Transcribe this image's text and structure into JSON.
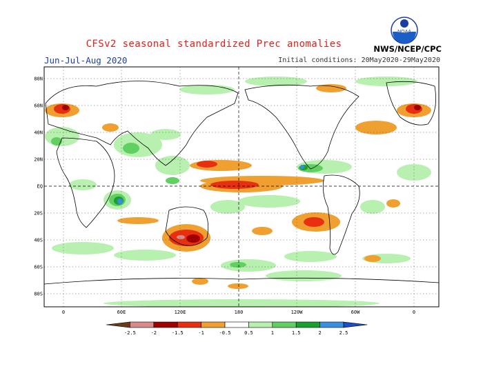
{
  "title": "CFSv2 seasonal standardized Prec anomalies",
  "season": "Jun-Jul-Aug 2020",
  "initial_conditions": "Initial conditions: 20May2020-29May2020",
  "agency": "NWS/NCEP/CPC",
  "logo_text": "NOAA",
  "lat_labels": [
    "80N",
    "60N",
    "40N",
    "20N",
    "EQ",
    "20S",
    "40S",
    "60S",
    "80S"
  ],
  "lon_labels": [
    "0",
    "60E",
    "120E",
    "180",
    "120W",
    "60W",
    "0"
  ],
  "colorbar": {
    "labels": [
      "-2.5",
      "-2",
      "-1.5",
      "-1",
      "-0.5",
      "0.5",
      "1",
      "1.5",
      "2",
      "2.5"
    ],
    "colors": [
      "#6b3a1a",
      "#d98a8a",
      "#a00000",
      "#e83010",
      "#f0a030",
      "#ffffff",
      "#b8f0b0",
      "#60d060",
      "#18a030",
      "#3a8ee0",
      "#1a4ec8"
    ]
  }
}
